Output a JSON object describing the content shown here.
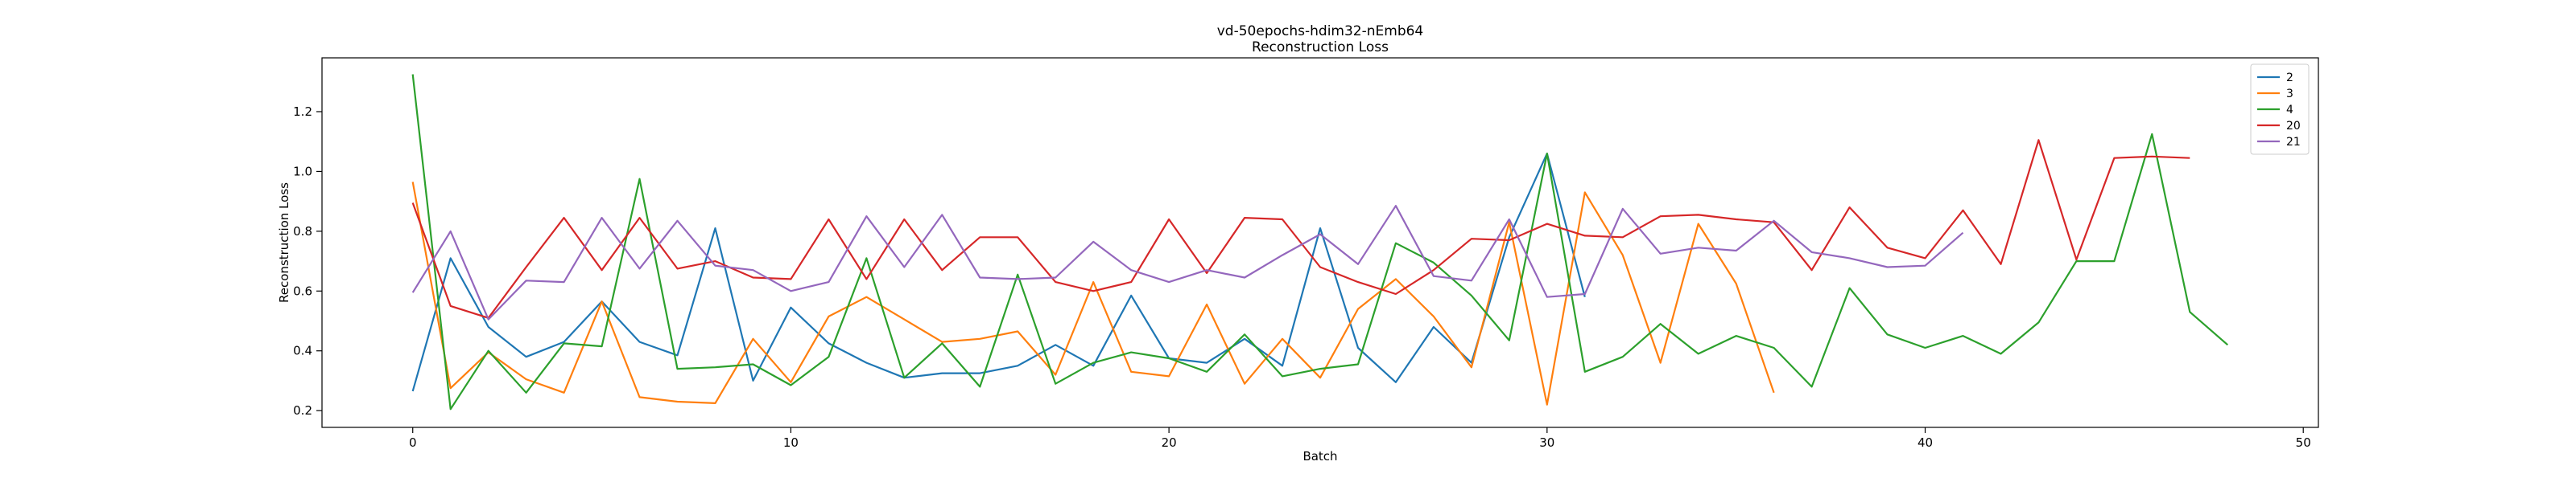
{
  "chart_data": {
    "type": "line",
    "title": "vd-50epochs-hdim32-nEmb64",
    "subtitle": "Reconstruction Loss",
    "xlabel": "Batch",
    "ylabel": "Reconstruction Loss",
    "xlim": [
      -2.4,
      50.4
    ],
    "ylim": [
      0.144,
      1.38
    ],
    "xticks": [
      0,
      10,
      20,
      30,
      40,
      50
    ],
    "yticks": [
      0.2,
      0.4,
      0.6,
      0.8,
      1.0,
      1.2
    ],
    "ytick_labels": [
      "0.2",
      "0.4",
      "0.6",
      "0.8",
      "1.0",
      "1.2"
    ],
    "grid": false,
    "legend_position": "top-right",
    "series": [
      {
        "name": "2",
        "color": "#1f77b4",
        "values": [
          0.265,
          0.71,
          0.48,
          0.38,
          0.43,
          0.565,
          0.43,
          0.385,
          0.81,
          0.3,
          0.545,
          0.425,
          0.36,
          0.31,
          0.325,
          0.325,
          0.35,
          0.42,
          0.35,
          0.585,
          0.375,
          0.36,
          0.44,
          0.35,
          0.81,
          0.41,
          0.295,
          0.48,
          0.36,
          0.78,
          1.06,
          0.58
        ]
      },
      {
        "name": "3",
        "color": "#ff7f0e",
        "values": [
          0.965,
          0.275,
          0.395,
          0.305,
          0.26,
          0.565,
          0.245,
          0.23,
          0.225,
          0.44,
          0.295,
          0.515,
          0.58,
          0.505,
          0.43,
          0.44,
          0.465,
          0.32,
          0.63,
          0.33,
          0.315,
          0.555,
          0.29,
          0.44,
          0.31,
          0.54,
          0.64,
          0.515,
          0.345,
          0.83,
          0.22,
          0.93,
          0.72,
          0.36,
          0.825,
          0.625,
          0.26
        ]
      },
      {
        "name": "4",
        "color": "#2ca02c",
        "values": [
          1.325,
          0.205,
          0.4,
          0.26,
          0.425,
          0.415,
          0.975,
          0.34,
          0.345,
          0.355,
          0.285,
          0.38,
          0.71,
          0.31,
          0.425,
          0.28,
          0.655,
          0.29,
          0.36,
          0.395,
          0.375,
          0.33,
          0.455,
          0.315,
          0.34,
          0.355,
          0.76,
          0.695,
          0.585,
          0.435,
          1.06,
          0.33,
          0.38,
          0.49,
          0.39,
          0.45,
          0.41,
          0.28,
          0.61,
          0.455,
          0.41,
          0.45,
          0.39,
          0.495,
          0.7,
          0.7,
          1.125,
          0.53,
          0.42
        ]
      },
      {
        "name": "20",
        "color": "#d62728",
        "values": [
          0.895,
          0.55,
          0.51,
          0.68,
          0.845,
          0.67,
          0.845,
          0.675,
          0.7,
          0.645,
          0.64,
          0.84,
          0.64,
          0.84,
          0.67,
          0.78,
          0.78,
          0.63,
          0.6,
          0.63,
          0.84,
          0.66,
          0.845,
          0.84,
          0.68,
          0.63,
          0.59,
          0.67,
          0.775,
          0.77,
          0.825,
          0.785,
          0.78,
          0.85,
          0.855,
          0.84,
          0.83,
          0.67,
          0.88,
          0.745,
          0.71,
          0.87,
          0.69,
          1.105,
          0.705,
          1.045,
          1.05,
          1.045
        ]
      },
      {
        "name": "21",
        "color": "#9467bd",
        "values": [
          0.595,
          0.8,
          0.505,
          0.635,
          0.63,
          0.845,
          0.675,
          0.835,
          0.685,
          0.67,
          0.6,
          0.63,
          0.85,
          0.68,
          0.855,
          0.645,
          0.64,
          0.645,
          0.765,
          0.67,
          0.63,
          0.67,
          0.645,
          0.72,
          0.79,
          0.69,
          0.885,
          0.65,
          0.635,
          0.84,
          0.58,
          0.59,
          0.875,
          0.725,
          0.745,
          0.735,
          0.835,
          0.73,
          0.71,
          0.68,
          0.685,
          0.795
        ]
      }
    ]
  }
}
